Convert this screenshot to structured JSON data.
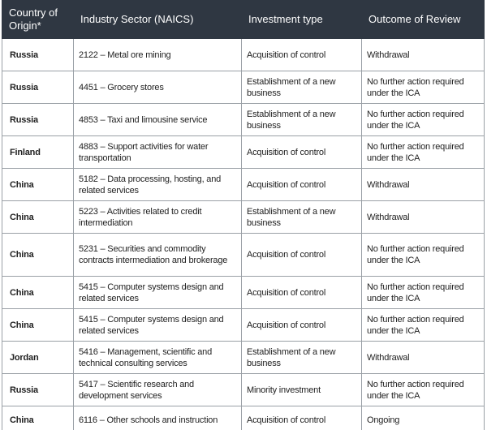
{
  "table": {
    "header": [
      "Country of Origin*",
      "Industry Sector (NAICS)",
      "Investment type",
      "Outcome of Review"
    ],
    "rows": [
      [
        "Russia",
        "2122 – Metal ore mining",
        "Acquisition of control",
        "Withdrawal"
      ],
      [
        "Russia",
        "4451 – Grocery stores",
        "Establishment of a new business",
        "No further action required under the ICA"
      ],
      [
        "Russia",
        "4853 – Taxi and limousine service",
        "Establishment of a new business",
        "No further action required under the ICA"
      ],
      [
        "Finland",
        "4883 – Support activities for water transportation",
        "Acquisition of control",
        "No further action required under the ICA"
      ],
      [
        "China",
        "5182 – Data processing, hosting, and related services",
        "Acquisition of control",
        "Withdrawal"
      ],
      [
        "China",
        "5223 – Activities related to credit intermediation",
        "Establishment of a new business",
        "Withdrawal"
      ],
      [
        "China",
        "5231 – Securities and commodity contracts intermediation and brokerage",
        "Acquisition of control",
        "No further action required under the ICA"
      ],
      [
        "China",
        "5415 – Computer systems design and related services",
        "Acquisition of control",
        "No further action required under the ICA"
      ],
      [
        "China",
        "5415 – Computer systems design and related services",
        "Acquisition of control",
        "No further action required under the ICA"
      ],
      [
        "Jordan",
        "5416 – Management, scientific and technical consulting services",
        "Establishment of a new business",
        "Withdrawal"
      ],
      [
        "Russia",
        "5417 – Scientific research and development services",
        "Minority investment",
        "No further action required under the ICA"
      ],
      [
        "China",
        "6116 – Other schools and instruction",
        "Acquisition of control",
        "Ongoing"
      ]
    ]
  }
}
